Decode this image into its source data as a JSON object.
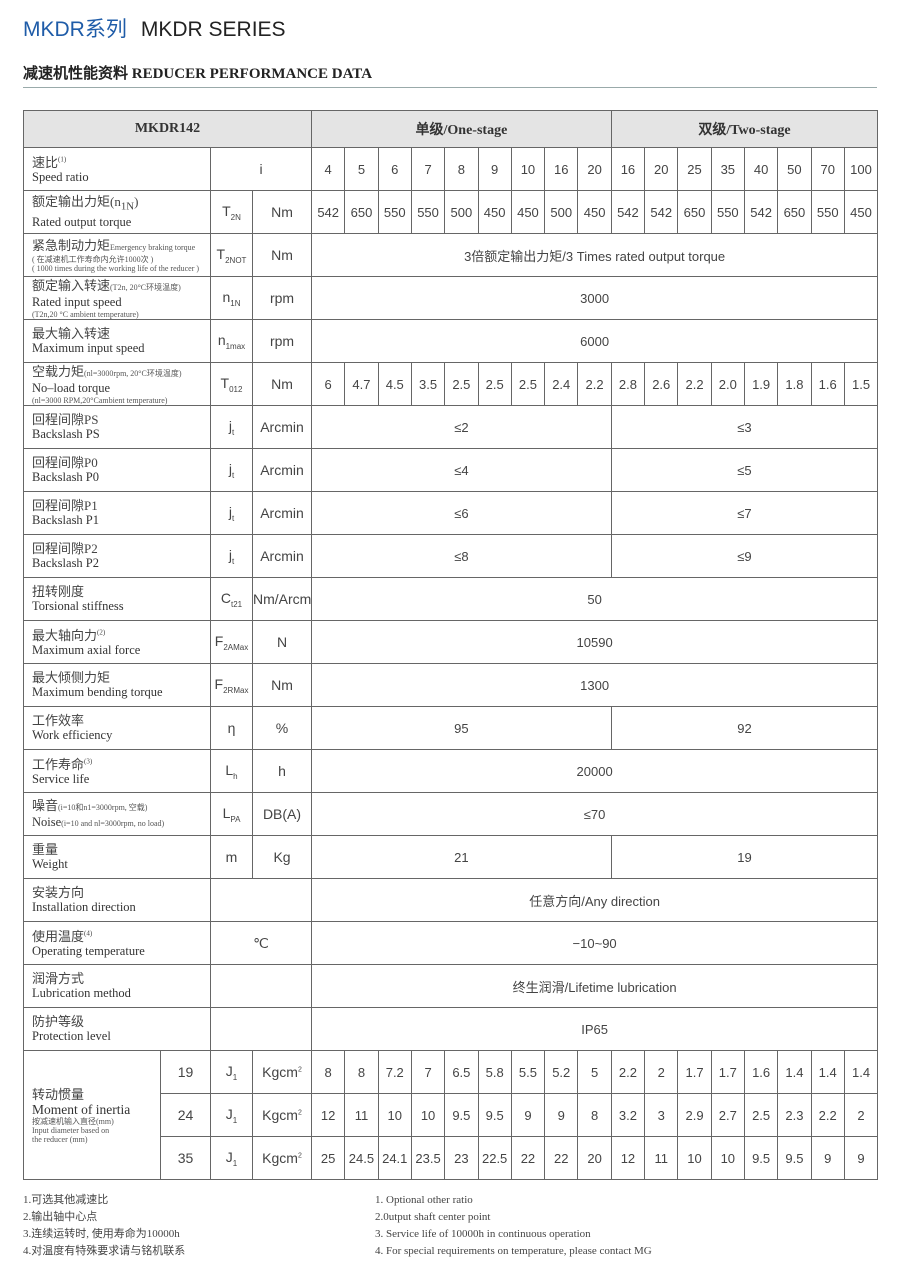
{
  "header": {
    "title_cn": "MKDR系列",
    "title_en": "MKDR SERIES",
    "subtitle": "减速机性能资料 REDUCER PERFORMANCE DATA"
  },
  "table": {
    "model": "MKDR142",
    "single_stage": "单级/One-stage",
    "two_stage": "双级/Two-stage",
    "rows": [
      {
        "cn": "速比",
        "sup": "(1)",
        "en": "Speed ratio",
        "sym_merged": "i",
        "values": [
          "4",
          "5",
          "6",
          "7",
          "8",
          "9",
          "10",
          "16",
          "20",
          "16",
          "20",
          "25",
          "35",
          "40",
          "50",
          "70",
          "100"
        ]
      },
      {
        "cn": "额定输出力矩(n",
        "cn_sub": "1N",
        "cn_tail": ")",
        "en": "Rated output torque",
        "sym": "T",
        "sub": "2N",
        "unit": "Nm",
        "values": [
          "542",
          "650",
          "550",
          "550",
          "500",
          "450",
          "450",
          "500",
          "450",
          "542",
          "542",
          "650",
          "550",
          "542",
          "650",
          "550",
          "450"
        ]
      },
      {
        "cn": "紧急制动力矩",
        "cn_small": "Emergency braking torque",
        "notes": [
          "( 在减速机工作寿命内允许1000次 )",
          "( 1000 times during the working life of the reducer )"
        ],
        "sym": "T",
        "sub": "2NOT",
        "unit": "Nm",
        "all": "3倍额定输出力矩/3 Times rated output torque"
      },
      {
        "cn": "额定输入转速",
        "cn_small": "(T2n, 20°C环境温度)",
        "en": "Rated input speed",
        "notes": [
          "(T2n,20 °C ambient temperature)"
        ],
        "sym": "n",
        "sub": "1N",
        "unit": "rpm",
        "all": "3000"
      },
      {
        "cn": "最大输入转速",
        "en": "Maximum input speed",
        "sym": "n",
        "sub": "1max",
        "unit": "rpm",
        "all": "6000"
      },
      {
        "cn": "空载力矩",
        "cn_small": "(nl=3000rpm, 20°C环境温度)",
        "en": "No–load torque",
        "notes": [
          "(nl=3000 RPM,20°Cambient temperature)"
        ],
        "sym": "T",
        "sub": "012",
        "unit": "Nm",
        "values": [
          "6",
          "4.7",
          "4.5",
          "3.5",
          "2.5",
          "2.5",
          "2.5",
          "2.4",
          "2.2",
          "2.8",
          "2.6",
          "2.2",
          "2.0",
          "1.9",
          "1.8",
          "1.6",
          "1.5"
        ]
      },
      {
        "cn": "回程间隙PS",
        "en": "Backslash PS",
        "sym": "j",
        "sub": "t",
        "unit": "Arcmin",
        "single": "≤2",
        "two": "≤3"
      },
      {
        "cn": "回程间隙P0",
        "en": "Backslash P0",
        "sym": "j",
        "sub": "t",
        "unit": "Arcmin",
        "single": "≤4",
        "two": "≤5"
      },
      {
        "cn": "回程间隙P1",
        "en": "Backslash P1",
        "sym": "j",
        "sub": "t",
        "unit": "Arcmin",
        "single": "≤6",
        "two": "≤7"
      },
      {
        "cn": "回程间隙P2",
        "en": "Backslash P2",
        "sym": "j",
        "sub": "t",
        "unit": "Arcmin",
        "single": "≤8",
        "two": "≤9"
      },
      {
        "cn": "扭转刚度",
        "en": "Torsional stiffness",
        "sym": "C",
        "sub": "t21",
        "unit": "Nm/Arcmin",
        "all": "50"
      },
      {
        "cn": "最大轴向力",
        "sup": "(2)",
        "en": "Maximum axial force",
        "sym": "F",
        "sub": "2AMax",
        "unit": "N",
        "all": "10590"
      },
      {
        "cn": "最大倾侧力矩",
        "en": "Maximum bending torque",
        "sym": "F",
        "sub": "2RMax",
        "unit": "Nm",
        "all": "1300"
      },
      {
        "cn": "工作效率",
        "en": "Work efficiency",
        "sym": "η",
        "unit": "%",
        "single": "95",
        "two": "92"
      },
      {
        "cn": "工作寿命",
        "sup": "(3)",
        "en": "Service life",
        "sym": "L",
        "sub": "h",
        "unit": "h",
        "all": "20000"
      },
      {
        "cn": "噪音",
        "cn_small": "(i=10和n1=3000rpm, 空载)",
        "en": "Noise",
        "en_small": "(i=10 and nl=3000rpm, no load)",
        "sym": "L",
        "sub": "PA",
        "unit": "DB(A)",
        "all": "≤70"
      },
      {
        "cn": "重量",
        "en": "Weight",
        "sym": "m",
        "unit": "Kg",
        "single": "21",
        "two": "19"
      },
      {
        "cn": "安装方向",
        "en": "Installation direction",
        "sym_merged": "",
        "all": "任意方向/Any direction"
      },
      {
        "cn": "使用温度",
        "sup": "(4)",
        "en": "Operating temperature",
        "sym_merged": "℃",
        "all": "−10~90"
      },
      {
        "cn": "润滑方式",
        "en": "Lubrication method",
        "sym_merged": "",
        "all": "终生润滑/Lifetime lubrication"
      },
      {
        "cn": "防护等级",
        "en": "Protection level",
        "sym_merged": "",
        "all": "IP65"
      }
    ],
    "inertia": {
      "cn": "转动惯量",
      "en": "Moment of inertia",
      "notes": [
        "按减速机输入直径(mm)",
        "Input diameter based on",
        "the reducer (mm)"
      ],
      "sym": "J",
      "sub": "1",
      "unit": "Kgcm",
      "unit_sup": "2",
      "rows": [
        {
          "diameter": "19",
          "values": [
            "8",
            "8",
            "7.2",
            "7",
            "6.5",
            "5.8",
            "5.5",
            "5.2",
            "5",
            "2.2",
            "2",
            "1.7",
            "1.7",
            "1.6",
            "1.4",
            "1.4",
            "1.4"
          ]
        },
        {
          "diameter": "24",
          "values": [
            "12",
            "11",
            "10",
            "10",
            "9.5",
            "9.5",
            "9",
            "9",
            "8",
            "3.2",
            "3",
            "2.9",
            "2.7",
            "2.5",
            "2.3",
            "2.2",
            "2"
          ]
        },
        {
          "diameter": "35",
          "values": [
            "25",
            "24.5",
            "24.1",
            "23.5",
            "23",
            "22.5",
            "22",
            "22",
            "20",
            "12",
            "11",
            "10",
            "10",
            "9.5",
            "9.5",
            "9",
            "9"
          ]
        }
      ]
    }
  },
  "notes": {
    "cn": [
      "1.可选其他减速比",
      "2.输出轴中心点",
      "3.连续运转时, 使用寿命为10000h",
      "4.对温度有特殊要求请与铭机联系"
    ],
    "en": [
      "1. Optional other ratio",
      "2.0utput shaft center point",
      "3. Service life of 10000h in continuous operation",
      "4. For special requirements on temperature, please contact MG"
    ]
  },
  "colors": {
    "title_blue": "#1f5ca8",
    "header_bg": "#e4e4e4",
    "border": "#666666"
  }
}
